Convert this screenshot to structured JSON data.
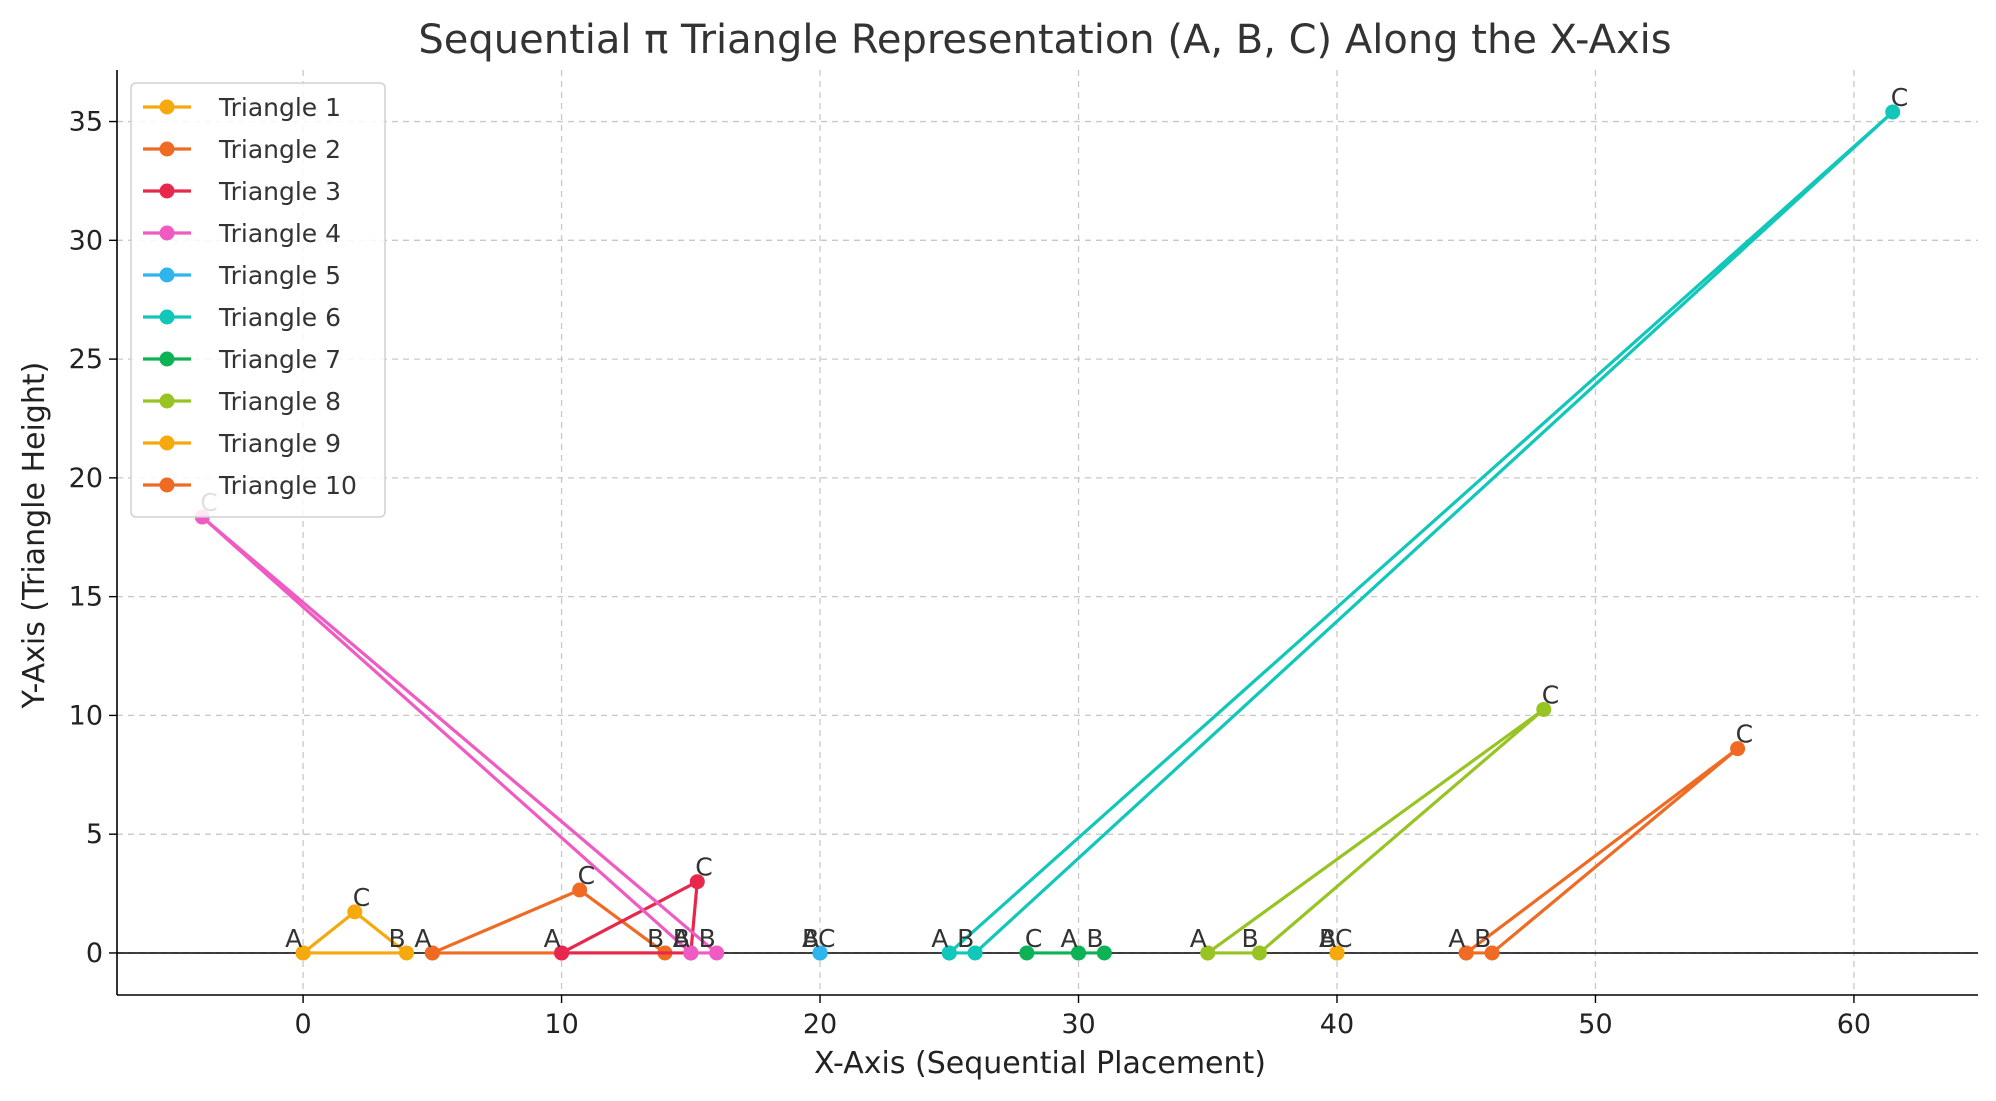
{
  "chart_data": {
    "type": "line",
    "title": "Sequential π Triangle Representation (A, B, C) Along the X-Axis",
    "xlabel": "X-Axis (Sequential Placement)",
    "ylabel": "Y-Axis (Triangle Height)",
    "xlim": [
      -7.2,
      64.8
    ],
    "ylim": [
      -1.77,
      37.17
    ],
    "xticks": [
      0,
      10,
      20,
      30,
      40,
      50,
      60
    ],
    "yticks": [
      0,
      5,
      10,
      15,
      20,
      25,
      30,
      35
    ],
    "grid": true,
    "legend_position": "top-left",
    "baseline_y": 0,
    "series": [
      {
        "name": "Triangle 1",
        "color": "#f6a90c",
        "points": [
          [
            0,
            0
          ],
          [
            4,
            0
          ],
          [
            2,
            1.73
          ],
          [
            0,
            0
          ]
        ],
        "labels": [
          "A",
          "B",
          "C"
        ]
      },
      {
        "name": "Triangle 2",
        "color": "#ef6b24",
        "points": [
          [
            5,
            0
          ],
          [
            14,
            0
          ],
          [
            10.7,
            2.65
          ],
          [
            5,
            0
          ]
        ],
        "labels": [
          "A",
          "B",
          "C"
        ]
      },
      {
        "name": "Triangle 3",
        "color": "#e7284c",
        "points": [
          [
            10,
            0
          ],
          [
            15,
            0
          ],
          [
            15.25,
            3.0
          ],
          [
            10,
            0
          ]
        ],
        "labels": [
          "A",
          "B",
          "C"
        ]
      },
      {
        "name": "Triangle 4",
        "color": "#ef5bc2",
        "points": [
          [
            15,
            0
          ],
          [
            16,
            0
          ],
          [
            -3.9,
            18.35
          ],
          [
            15,
            0
          ]
        ],
        "labels": [
          "A",
          "B",
          "C"
        ]
      },
      {
        "name": "Triangle 5",
        "color": "#2fb5ee",
        "points": [
          [
            20,
            0
          ],
          [
            20,
            0
          ],
          [
            20,
            0
          ],
          [
            20,
            0
          ]
        ],
        "labels": [
          "A",
          "B",
          "C"
        ]
      },
      {
        "name": "Triangle 6",
        "color": "#10c7b9",
        "points": [
          [
            25,
            0
          ],
          [
            26,
            0
          ],
          [
            61.5,
            35.4
          ],
          [
            25,
            0
          ]
        ],
        "labels": [
          "A",
          "B",
          "C"
        ]
      },
      {
        "name": "Triangle 7",
        "color": "#0eb256",
        "points": [
          [
            30,
            0
          ],
          [
            31,
            0
          ],
          [
            28,
            0
          ],
          [
            30,
            0
          ]
        ],
        "labels": [
          "A",
          "B",
          "C"
        ]
      },
      {
        "name": "Triangle 8",
        "color": "#98c423",
        "points": [
          [
            35,
            0
          ],
          [
            37,
            0
          ],
          [
            48,
            10.25
          ],
          [
            35,
            0
          ]
        ],
        "labels": [
          "A",
          "B",
          "C"
        ]
      },
      {
        "name": "Triangle 9",
        "color": "#f6a90c",
        "points": [
          [
            40,
            0
          ],
          [
            40,
            0
          ],
          [
            40,
            0
          ],
          [
            40,
            0
          ]
        ],
        "labels": [
          "A",
          "B",
          "C"
        ]
      },
      {
        "name": "Triangle 10",
        "color": "#ef6b24",
        "points": [
          [
            45,
            0
          ],
          [
            46,
            0
          ],
          [
            55.5,
            8.6
          ],
          [
            45,
            0
          ]
        ],
        "labels": [
          "A",
          "B",
          "C"
        ]
      }
    ]
  }
}
